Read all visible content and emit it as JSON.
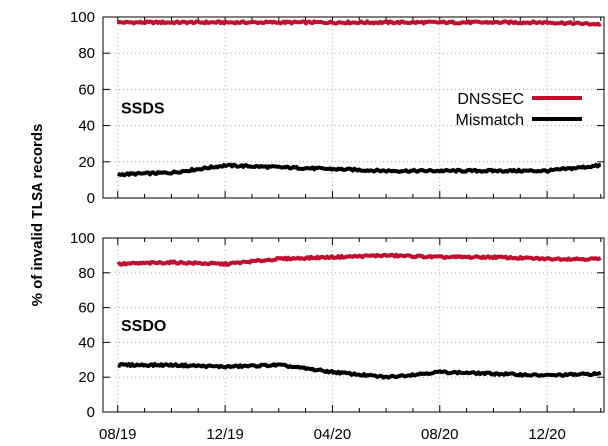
{
  "chart_data": [
    {
      "type": "line",
      "panel_label": "SSDS",
      "ylim": [
        0,
        100
      ],
      "yticks": [
        0,
        20,
        40,
        60,
        80,
        100
      ],
      "xticks": [
        "08/19",
        "12/19",
        "04/20",
        "08/20",
        "12/20"
      ],
      "grid": true,
      "legend_position": "right",
      "x": [
        "08/19",
        "10/19",
        "12/19",
        "02/20",
        "04/20",
        "06/20",
        "08/20",
        "10/20",
        "12/20",
        "02/21"
      ],
      "series": [
        {
          "name": "DNSSEC",
          "color": "#c0102e",
          "values": [
            97,
            97,
            97,
            97,
            97,
            97,
            97,
            97,
            97,
            96
          ]
        },
        {
          "name": "Mismatch",
          "color": "#000000",
          "values": [
            13,
            14,
            18,
            17,
            16,
            15,
            15,
            15,
            15,
            18
          ]
        }
      ]
    },
    {
      "type": "line",
      "panel_label": "SSDO",
      "ylim": [
        0,
        100
      ],
      "yticks": [
        0,
        20,
        40,
        60,
        80,
        100
      ],
      "xticks": [
        "08/19",
        "12/19",
        "04/20",
        "08/20",
        "12/20"
      ],
      "grid": true,
      "x": [
        "08/19",
        "10/19",
        "12/19",
        "02/20",
        "04/20",
        "06/20",
        "08/20",
        "10/20",
        "12/20",
        "02/21"
      ],
      "series": [
        {
          "name": "DNSSEC",
          "color": "#c0102e",
          "values": [
            85,
            86,
            85,
            88,
            89,
            90,
            89,
            89,
            88,
            88
          ]
        },
        {
          "name": "Mismatch",
          "color": "#000000",
          "values": [
            27,
            27,
            26,
            27,
            23,
            20,
            23,
            22,
            21,
            22
          ]
        }
      ]
    }
  ],
  "ylabel_prefix": "% of invalid ",
  "ylabel_mono": "TLSA",
  "ylabel_suffix": " records"
}
